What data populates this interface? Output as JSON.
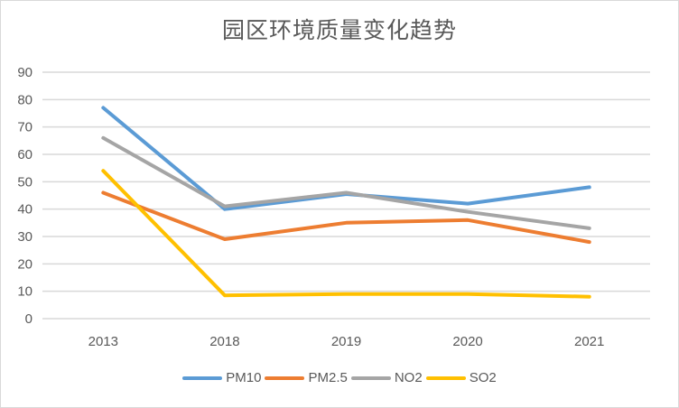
{
  "chart_data": {
    "type": "line",
    "title": "园区环境质量变化趋势",
    "xlabel": "",
    "ylabel": "",
    "categories": [
      "2013",
      "2018",
      "2019",
      "2020",
      "2021"
    ],
    "ylim": [
      0,
      90
    ],
    "yticks": [
      "0",
      "10",
      "20",
      "30",
      "40",
      "50",
      "60",
      "70",
      "80",
      "90"
    ],
    "grid": true,
    "legend_position": "bottom",
    "series": [
      {
        "name": "PM10",
        "color": "#5b9bd5",
        "values": [
          77,
          40,
          45.5,
          42,
          48
        ]
      },
      {
        "name": "PM2.5",
        "color": "#ed7d31",
        "values": [
          46,
          29,
          35,
          36,
          28
        ]
      },
      {
        "name": "NO2",
        "color": "#a5a5a5",
        "values": [
          66,
          41,
          46,
          39,
          33
        ]
      },
      {
        "name": "SO2",
        "color": "#ffc000",
        "values": [
          54,
          8.5,
          9,
          9,
          8
        ]
      }
    ]
  }
}
